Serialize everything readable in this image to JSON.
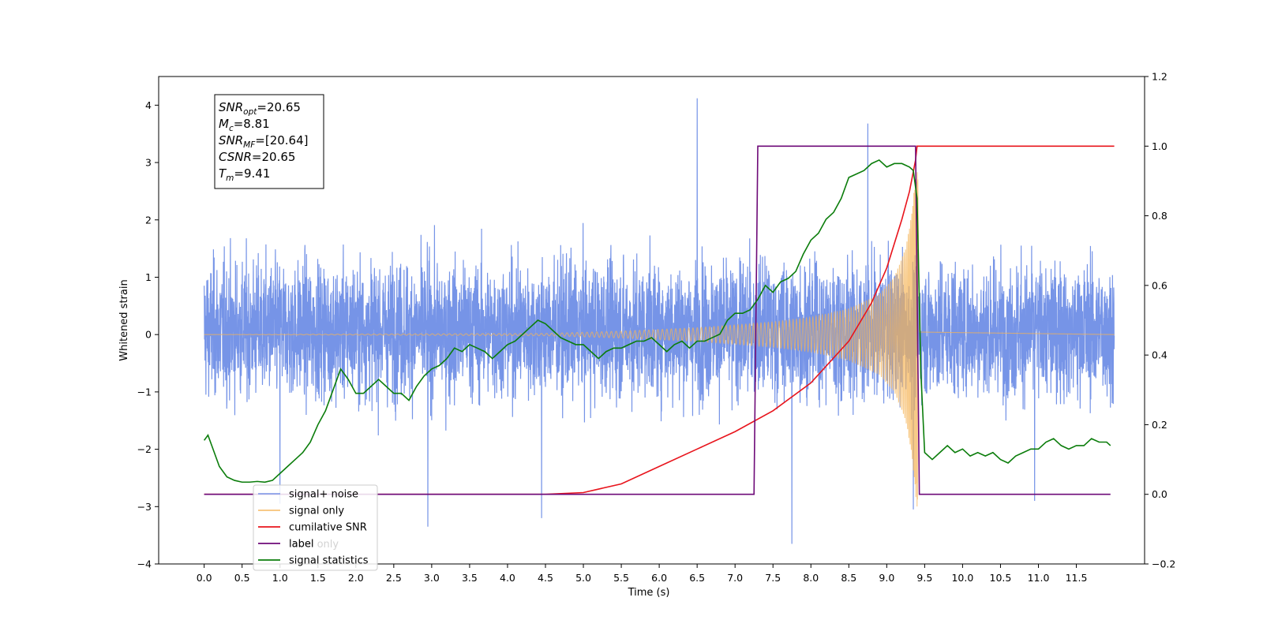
{
  "chart_data": {
    "type": "line",
    "xlabel": "Time (s)",
    "ylabel": "Whitened strain",
    "xlim": [
      -0.6,
      12.4
    ],
    "ylim_left": [
      -4,
      4.5
    ],
    "ylim_right": [
      -0.2,
      1.2
    ],
    "x_ticks": [
      "0.0",
      "0.5",
      "1.0",
      "1.5",
      "2.0",
      "2.5",
      "3.0",
      "3.5",
      "4.0",
      "4.5",
      "5.0",
      "5.5",
      "6.0",
      "6.5",
      "7.0",
      "7.5",
      "8.0",
      "8.5",
      "9.0",
      "9.5",
      "10.0",
      "10.5",
      "11.0",
      "11.5"
    ],
    "y_left_ticks": [
      "4",
      "3",
      "2",
      "1",
      "0",
      "−1",
      "−2",
      "−3",
      "−4"
    ],
    "y_right_ticks": [
      "1.2",
      "1.0",
      "0.8",
      "0.6",
      "0.4",
      "0.2",
      "0.0",
      "−0.2"
    ],
    "annotation": [
      {
        "base": "SNR",
        "sub": "opt",
        "rest": "=20.65"
      },
      {
        "base": "M",
        "sub": "c",
        "rest": "=8.81"
      },
      {
        "base": "SNR",
        "sub": "MF",
        "rest": "=[20.64]"
      },
      {
        "base": "CSNR",
        "sub": "",
        "rest": "=20.65"
      },
      {
        "base": "T",
        "sub": "m",
        "rest": "=9.41"
      }
    ],
    "legend": [
      {
        "label": "signal+ noise",
        "color": "#6f8ee6"
      },
      {
        "label": "signal only",
        "color": "#f5b356"
      },
      {
        "label": "cumilative SNR",
        "color": "#e8141c"
      },
      {
        "label": "label",
        "color": "#6e0a78"
      },
      {
        "label": "signal statistics",
        "color": "#0b7d0b"
      }
    ],
    "legend_overlaid_text": [
      "label only"
    ],
    "series": [
      {
        "name": "signal+ noise",
        "axis": "left",
        "color": "#6f8ee6",
        "x_range": [
          0,
          12
        ],
        "envelope_typical": [
          -1.9,
          2.1
        ],
        "extremes": [
          [
            6.5,
            4.12
          ],
          [
            8.75,
            3.68
          ],
          [
            9.35,
            3.6
          ],
          [
            1.0,
            -2.95
          ],
          [
            2.95,
            -3.35
          ],
          [
            4.45,
            -3.2
          ],
          [
            7.75,
            -3.65
          ],
          [
            9.35,
            -3.05
          ],
          [
            10.95,
            -2.9
          ]
        ]
      },
      {
        "name": "signal only",
        "axis": "left",
        "color": "#f5b356",
        "x_range": [
          0,
          12
        ],
        "chirp_peak_time": 9.41,
        "amplitude_profile": [
          [
            0,
            0.0
          ],
          [
            4.5,
            0.02
          ],
          [
            5.5,
            0.06
          ],
          [
            6.5,
            0.12
          ],
          [
            7.5,
            0.22
          ],
          [
            8.0,
            0.3
          ],
          [
            8.5,
            0.45
          ],
          [
            8.9,
            0.7
          ],
          [
            9.1,
            1.0
          ],
          [
            9.25,
            1.5
          ],
          [
            9.33,
            2.1
          ],
          [
            9.38,
            2.8
          ],
          [
            9.41,
            3.1
          ],
          [
            9.43,
            0.05
          ],
          [
            12,
            0.0
          ]
        ]
      },
      {
        "name": "cumilative SNR",
        "axis": "right",
        "color": "#e8141c",
        "points": [
          [
            0,
            0.0
          ],
          [
            4.5,
            0.0
          ],
          [
            5.0,
            0.005
          ],
          [
            5.5,
            0.03
          ],
          [
            6.0,
            0.08
          ],
          [
            6.5,
            0.13
          ],
          [
            7.0,
            0.18
          ],
          [
            7.5,
            0.24
          ],
          [
            8.0,
            0.32
          ],
          [
            8.5,
            0.44
          ],
          [
            8.8,
            0.55
          ],
          [
            9.0,
            0.65
          ],
          [
            9.2,
            0.79
          ],
          [
            9.3,
            0.87
          ],
          [
            9.38,
            0.96
          ],
          [
            9.4,
            1.0
          ],
          [
            12,
            1.0
          ]
        ]
      },
      {
        "name": "label",
        "axis": "right",
        "color": "#6e0a78",
        "points": [
          [
            0,
            0.0
          ],
          [
            7.25,
            0.0
          ],
          [
            7.3,
            1.0
          ],
          [
            9.38,
            1.0
          ],
          [
            9.43,
            0.0
          ],
          [
            11.95,
            0.0
          ]
        ]
      },
      {
        "name": "signal statistics",
        "axis": "right",
        "color": "#0b7d0b",
        "points": [
          [
            0,
            0.155
          ],
          [
            0.05,
            0.17
          ],
          [
            0.1,
            0.14
          ],
          [
            0.2,
            0.08
          ],
          [
            0.3,
            0.05
          ],
          [
            0.4,
            0.04
          ],
          [
            0.5,
            0.035
          ],
          [
            0.6,
            0.035
          ],
          [
            0.7,
            0.037
          ],
          [
            0.8,
            0.035
          ],
          [
            0.9,
            0.04
          ],
          [
            1.0,
            0.06
          ],
          [
            1.1,
            0.08
          ],
          [
            1.2,
            0.1
          ],
          [
            1.3,
            0.12
          ],
          [
            1.4,
            0.15
          ],
          [
            1.5,
            0.2
          ],
          [
            1.6,
            0.24
          ],
          [
            1.7,
            0.3
          ],
          [
            1.8,
            0.36
          ],
          [
            1.9,
            0.33
          ],
          [
            2.0,
            0.29
          ],
          [
            2.1,
            0.29
          ],
          [
            2.2,
            0.31
          ],
          [
            2.3,
            0.33
          ],
          [
            2.4,
            0.31
          ],
          [
            2.5,
            0.29
          ],
          [
            2.6,
            0.29
          ],
          [
            2.7,
            0.27
          ],
          [
            2.8,
            0.31
          ],
          [
            2.9,
            0.34
          ],
          [
            3.0,
            0.36
          ],
          [
            3.1,
            0.37
          ],
          [
            3.2,
            0.39
          ],
          [
            3.3,
            0.42
          ],
          [
            3.4,
            0.41
          ],
          [
            3.5,
            0.43
          ],
          [
            3.6,
            0.42
          ],
          [
            3.7,
            0.41
          ],
          [
            3.8,
            0.39
          ],
          [
            3.9,
            0.41
          ],
          [
            4.0,
            0.43
          ],
          [
            4.1,
            0.44
          ],
          [
            4.2,
            0.46
          ],
          [
            4.3,
            0.48
          ],
          [
            4.4,
            0.5
          ],
          [
            4.5,
            0.49
          ],
          [
            4.6,
            0.47
          ],
          [
            4.7,
            0.45
          ],
          [
            4.8,
            0.44
          ],
          [
            4.9,
            0.43
          ],
          [
            5.0,
            0.43
          ],
          [
            5.1,
            0.41
          ],
          [
            5.2,
            0.39
          ],
          [
            5.3,
            0.41
          ],
          [
            5.4,
            0.42
          ],
          [
            5.5,
            0.42
          ],
          [
            5.6,
            0.43
          ],
          [
            5.7,
            0.44
          ],
          [
            5.8,
            0.44
          ],
          [
            5.9,
            0.45
          ],
          [
            6.0,
            0.43
          ],
          [
            6.1,
            0.41
          ],
          [
            6.2,
            0.43
          ],
          [
            6.3,
            0.44
          ],
          [
            6.4,
            0.42
          ],
          [
            6.5,
            0.44
          ],
          [
            6.6,
            0.44
          ],
          [
            6.7,
            0.45
          ],
          [
            6.8,
            0.46
          ],
          [
            6.9,
            0.5
          ],
          [
            7.0,
            0.52
          ],
          [
            7.1,
            0.52
          ],
          [
            7.2,
            0.53
          ],
          [
            7.3,
            0.56
          ],
          [
            7.4,
            0.6
          ],
          [
            7.5,
            0.58
          ],
          [
            7.6,
            0.61
          ],
          [
            7.7,
            0.62
          ],
          [
            7.8,
            0.64
          ],
          [
            7.9,
            0.69
          ],
          [
            8.0,
            0.73
          ],
          [
            8.1,
            0.75
          ],
          [
            8.2,
            0.79
          ],
          [
            8.3,
            0.81
          ],
          [
            8.4,
            0.85
          ],
          [
            8.5,
            0.91
          ],
          [
            8.6,
            0.92
          ],
          [
            8.7,
            0.93
          ],
          [
            8.8,
            0.95
          ],
          [
            8.9,
            0.96
          ],
          [
            9.0,
            0.94
          ],
          [
            9.1,
            0.95
          ],
          [
            9.2,
            0.95
          ],
          [
            9.3,
            0.94
          ],
          [
            9.35,
            0.93
          ],
          [
            9.4,
            0.85
          ],
          [
            9.45,
            0.35
          ],
          [
            9.5,
            0.12
          ],
          [
            9.6,
            0.1
          ],
          [
            9.7,
            0.12
          ],
          [
            9.8,
            0.14
          ],
          [
            9.9,
            0.12
          ],
          [
            10.0,
            0.13
          ],
          [
            10.1,
            0.11
          ],
          [
            10.2,
            0.12
          ],
          [
            10.3,
            0.11
          ],
          [
            10.4,
            0.12
          ],
          [
            10.5,
            0.1
          ],
          [
            10.6,
            0.09
          ],
          [
            10.7,
            0.11
          ],
          [
            10.8,
            0.12
          ],
          [
            10.9,
            0.13
          ],
          [
            11.0,
            0.13
          ],
          [
            11.1,
            0.15
          ],
          [
            11.2,
            0.16
          ],
          [
            11.3,
            0.14
          ],
          [
            11.4,
            0.13
          ],
          [
            11.5,
            0.14
          ],
          [
            11.6,
            0.14
          ],
          [
            11.7,
            0.16
          ],
          [
            11.8,
            0.15
          ],
          [
            11.9,
            0.15
          ],
          [
            11.95,
            0.14
          ]
        ]
      }
    ]
  }
}
